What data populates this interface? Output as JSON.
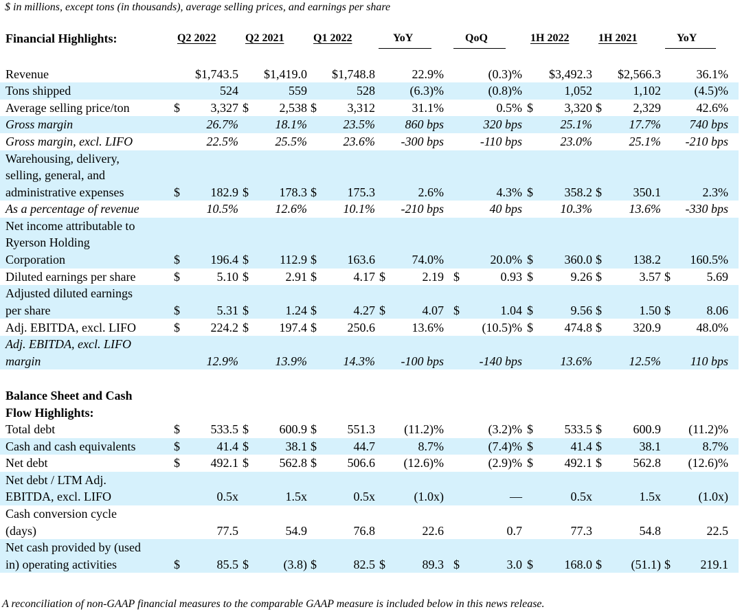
{
  "note_top": "$ in millions, except tons (in thousands), average selling prices, and earnings per share",
  "header": {
    "title": "Financial Highlights:",
    "cols": [
      "Q2 2022",
      "Q2 2021",
      "Q1 2022",
      "YoY",
      "QoQ",
      "1H 2022",
      "1H 2021",
      "YoY"
    ]
  },
  "financial_rows": [
    {
      "label": [
        "Revenue"
      ],
      "style": "normal",
      "shade": false,
      "cells": [
        "$1,743.5",
        "$1,419.0",
        "$1,748.8",
        "22.9%",
        "(0.3)%",
        "$3,492.3",
        "$2,566.3",
        "36.1%"
      ]
    },
    {
      "label": [
        "Tons shipped"
      ],
      "style": "normal",
      "shade": true,
      "cells": [
        "524",
        "559",
        "528",
        "(6.3)%",
        "(0.8)%",
        "1,052",
        "1,102",
        "(4.5)%"
      ]
    },
    {
      "label": [
        "Average selling price/ton"
      ],
      "style": "normal",
      "shade": false,
      "cells": [
        "$ 3,327",
        "$ 2,538",
        "$ 3,312",
        "31.1%",
        "0.5%",
        "$ 3,320",
        "$ 2,329",
        "42.6%"
      ]
    },
    {
      "label": [
        "Gross margin"
      ],
      "style": "italic",
      "shade": true,
      "cells": [
        "26.7%",
        "18.1%",
        "23.5%",
        "860 bps",
        "320 bps",
        "25.1%",
        "17.7%",
        "740 bps"
      ]
    },
    {
      "label": [
        "Gross margin, excl. LIFO"
      ],
      "style": "italic",
      "shade": false,
      "cells": [
        "22.5%",
        "25.5%",
        "23.6%",
        "-300 bps",
        "-110 bps",
        "23.0%",
        "25.1%",
        "-210 bps"
      ]
    },
    {
      "label": [
        "Warehousing, delivery,",
        "selling, general, and",
        "administrative expenses"
      ],
      "style": "normal",
      "shade": true,
      "cells": [
        "$ 182.9",
        "$ 178.3",
        "$ 175.3",
        "2.6%",
        "4.3%",
        "$ 358.2",
        "$ 350.1",
        "2.3%"
      ]
    },
    {
      "label": [
        "As a percentage of revenue"
      ],
      "style": "italic",
      "shade": false,
      "cells": [
        "10.5%",
        "12.6%",
        "10.1%",
        "-210 bps",
        "40 bps",
        "10.3%",
        "13.6%",
        "-330 bps"
      ]
    },
    {
      "label": [
        "Net income attributable to",
        "Ryerson Holding",
        "Corporation"
      ],
      "style": "normal",
      "shade": true,
      "cells": [
        "$ 196.4",
        "$ 112.9",
        "$ 163.6",
        "74.0%",
        "20.0%",
        "$ 360.0",
        "$ 138.2",
        "160.5%"
      ]
    },
    {
      "label": [
        "Diluted earnings per share"
      ],
      "style": "normal",
      "shade": false,
      "cells": [
        "$ 5.10",
        "$ 2.91",
        "$ 4.17",
        "$ 2.19",
        "$ 0.93",
        "$ 9.26",
        "$ 3.57",
        "$ 5.69"
      ]
    },
    {
      "label": [
        "Adjusted diluted earnings",
        "per share"
      ],
      "style": "normal",
      "shade": true,
      "cells": [
        "$ 5.31",
        "$ 1.24",
        "$ 4.27",
        "$ 4.07",
        "$ 1.04",
        "$ 9.56",
        "$ 1.50",
        "$ 8.06"
      ]
    },
    {
      "label": [
        "Adj. EBITDA, excl. LIFO"
      ],
      "style": "normal",
      "shade": false,
      "cells": [
        "$ 224.2",
        "$ 197.4",
        "$ 250.6",
        "13.6%",
        "(10.5)%",
        "$ 474.8",
        "$ 320.9",
        "48.0%"
      ]
    },
    {
      "label": [
        "Adj. EBITDA, excl. LIFO",
        "margin"
      ],
      "style": "italic",
      "shade": true,
      "cells": [
        "12.9%",
        "13.9%",
        "14.3%",
        "-100 bps",
        "-140 bps",
        "13.6%",
        "12.5%",
        "110 bps"
      ]
    }
  ],
  "balance_header": [
    "Balance Sheet and Cash",
    "Flow Highlights:"
  ],
  "balance_rows": [
    {
      "label": [
        "Total debt"
      ],
      "style": "normal",
      "shade": false,
      "cells": [
        "$ 533.5",
        "$ 600.9",
        "$ 551.3",
        "(11.2)%",
        "(3.2)%",
        "$ 533.5",
        "$ 600.9",
        "(11.2)%"
      ]
    },
    {
      "label": [
        "Cash and cash equivalents"
      ],
      "style": "normal",
      "shade": true,
      "cells": [
        "$ 41.4",
        "$ 38.1",
        "$ 44.7",
        "8.7%",
        "(7.4)%",
        "$ 41.4",
        "$ 38.1",
        "8.7%"
      ]
    },
    {
      "label": [
        "Net debt"
      ],
      "style": "normal",
      "shade": false,
      "cells": [
        "$ 492.1",
        "$ 562.8",
        "$ 506.6",
        "(12.6)%",
        "(2.9)%",
        "$ 492.1",
        "$ 562.8",
        "(12.6)%"
      ]
    },
    {
      "label": [
        "Net debt / LTM Adj.",
        "EBITDA, excl. LIFO"
      ],
      "style": "normal",
      "shade": true,
      "cells": [
        "0.5x",
        "1.5x",
        "0.5x",
        "(1.0x)",
        "—",
        "0.5x",
        "1.5x",
        "(1.0x)"
      ]
    },
    {
      "label": [
        "Cash conversion cycle",
        "(days)"
      ],
      "style": "normal",
      "shade": false,
      "cells": [
        "77.5",
        "54.9",
        "76.8",
        "22.6",
        "0.7",
        "77.3",
        "54.8",
        "22.5"
      ]
    },
    {
      "label": [
        "Net cash provided by (used",
        "in) operating activities"
      ],
      "style": "normal",
      "shade": true,
      "cells": [
        "$ 85.5",
        "$ (3.8)",
        "$ 82.5",
        "$ 89.3",
        "$ 3.0",
        "$ 168.0",
        "$ (51.1)",
        "$ 219.1"
      ]
    }
  ],
  "note_bottom": "A reconciliation of non-GAAP financial measures to the comparable GAAP measure is included below in this news release."
}
